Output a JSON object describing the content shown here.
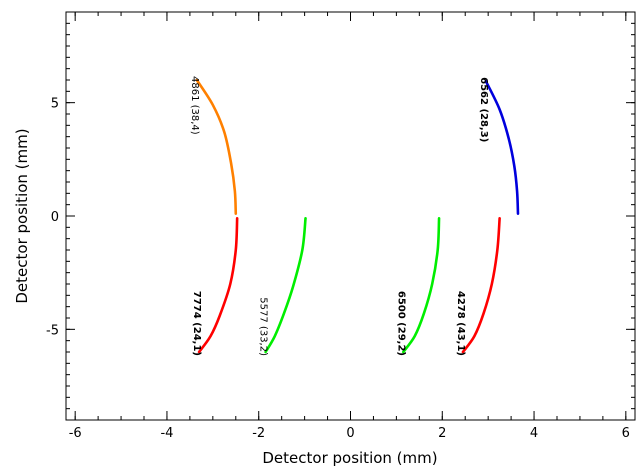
{
  "chart_data": {
    "type": "line",
    "title": "",
    "xlabel": "Detector position (mm)",
    "ylabel": "Detector position (mm)",
    "xlim": [
      -6.2,
      6.2
    ],
    "ylim": [
      -9.0,
      9.0
    ],
    "xticks": [
      -6,
      -4,
      -2,
      0,
      2,
      4,
      6
    ],
    "yticks": [
      -5,
      0,
      5
    ],
    "xtick_labels": [
      "-6",
      "-4",
      "-2",
      "0",
      "2",
      "4",
      "6"
    ],
    "ytick_labels": [
      "-5",
      "0",
      "5"
    ],
    "x_minor_step": 0.5,
    "y_minor_step": 0.5,
    "grid": false,
    "series": [
      {
        "name": "4861 (38,4)",
        "color": "#ff8000",
        "bold": false,
        "label_end": "top",
        "points": [
          [
            -3.35,
            6.0
          ],
          [
            -3.0,
            4.9
          ],
          [
            -2.75,
            3.7
          ],
          [
            -2.6,
            2.3
          ],
          [
            -2.52,
            1.1
          ],
          [
            -2.5,
            0.1
          ]
        ]
      },
      {
        "name": "6562 (28,3)",
        "color": "#0000dd",
        "bold": true,
        "label_end": "top",
        "points": [
          [
            2.95,
            5.95
          ],
          [
            3.25,
            4.7
          ],
          [
            3.45,
            3.4
          ],
          [
            3.57,
            2.2
          ],
          [
            3.63,
            1.1
          ],
          [
            3.65,
            0.1
          ]
        ]
      },
      {
        "name": "7774 (24,1)",
        "color": "#ff0000",
        "bold": true,
        "label_end": "bottom",
        "points": [
          [
            -2.47,
            -0.1
          ],
          [
            -2.5,
            -1.5
          ],
          [
            -2.62,
            -3.0
          ],
          [
            -2.85,
            -4.4
          ],
          [
            -3.05,
            -5.3
          ],
          [
            -3.3,
            -6.0
          ]
        ]
      },
      {
        "name": "5577 (33,2)",
        "color": "#00ee00",
        "bold": false,
        "label_end": "bottom",
        "points": [
          [
            -0.98,
            -0.1
          ],
          [
            -1.05,
            -1.5
          ],
          [
            -1.25,
            -3.1
          ],
          [
            -1.45,
            -4.3
          ],
          [
            -1.65,
            -5.3
          ],
          [
            -1.85,
            -6.0
          ]
        ]
      },
      {
        "name": "6500 (29,2)",
        "color": "#00ee00",
        "bold": true,
        "label_end": "bottom",
        "points": [
          [
            1.93,
            -0.1
          ],
          [
            1.9,
            -1.5
          ],
          [
            1.78,
            -3.0
          ],
          [
            1.6,
            -4.3
          ],
          [
            1.4,
            -5.3
          ],
          [
            1.15,
            -6.0
          ]
        ]
      },
      {
        "name": "4278 (43,1)",
        "color": "#ff0000",
        "bold": true,
        "label_end": "bottom",
        "points": [
          [
            3.25,
            -0.1
          ],
          [
            3.2,
            -1.5
          ],
          [
            3.08,
            -3.0
          ],
          [
            2.9,
            -4.3
          ],
          [
            2.7,
            -5.3
          ],
          [
            2.45,
            -6.0
          ]
        ]
      }
    ]
  }
}
